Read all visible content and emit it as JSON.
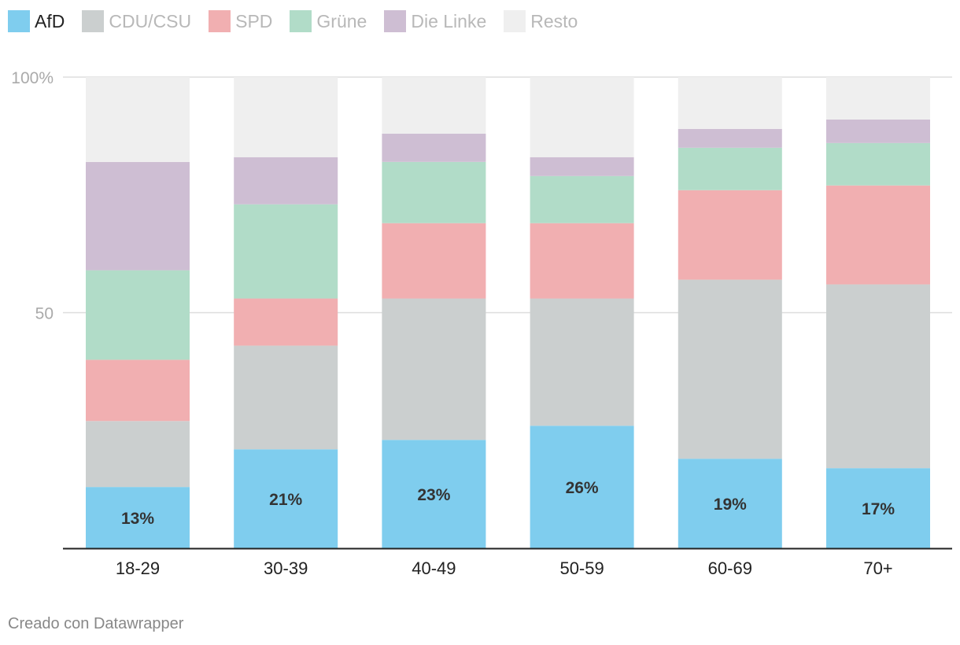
{
  "chart_data": {
    "type": "bar",
    "stacked": true,
    "categories": [
      "18-29",
      "30-39",
      "40-49",
      "50-59",
      "60-69",
      "70+"
    ],
    "series": [
      {
        "name": "AfD",
        "color": "#7fcdee",
        "values": [
          13,
          21,
          23,
          26,
          19,
          17
        ],
        "labels": [
          "13%",
          "21%",
          "23%",
          "26%",
          "19%",
          "17%"
        ]
      },
      {
        "name": "CDU/CSU",
        "color": "#cbcfcf",
        "values": [
          14,
          22,
          30,
          27,
          38,
          39
        ]
      },
      {
        "name": "SPD",
        "color": "#f1afb1",
        "values": [
          13,
          10,
          16,
          16,
          19,
          21
        ]
      },
      {
        "name": "Grüne",
        "color": "#b1dcc8",
        "values": [
          19,
          20,
          13,
          10,
          9,
          9
        ]
      },
      {
        "name": "Die Linke",
        "color": "#cebed3",
        "values": [
          23,
          10,
          6,
          4,
          4,
          5
        ]
      },
      {
        "name": "Resto",
        "color": "#efefef",
        "values": [
          18,
          17,
          12,
          17,
          11,
          9
        ]
      }
    ],
    "ylim": [
      0,
      100
    ],
    "yticks": [
      {
        "value": 50,
        "label": "50"
      },
      {
        "value": 100,
        "label": "100%"
      }
    ],
    "grid": true,
    "legend": "top-left",
    "highlighted_series": "AfD"
  },
  "footer": "Creado con Datawrapper"
}
